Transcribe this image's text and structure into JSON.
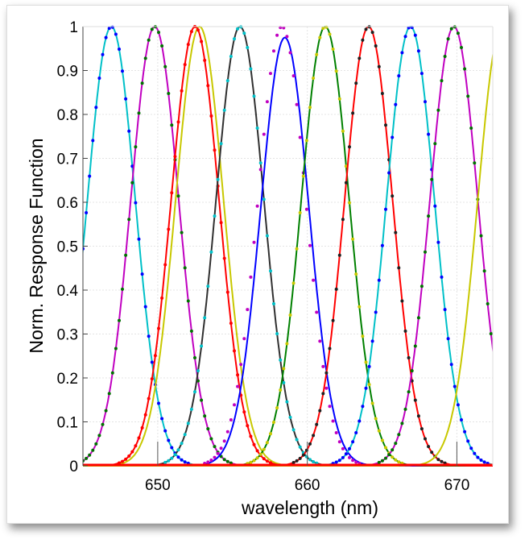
{
  "chart_data": {
    "type": "line",
    "title": "",
    "xlabel": "wavelength (nm)",
    "ylabel": "Norm. Response Function",
    "xlim": [
      645,
      672.4
    ],
    "ylim": [
      0,
      1
    ],
    "xticks": [
      "650",
      "660",
      "670"
    ],
    "xtick_values": [
      650,
      660,
      670
    ],
    "yticks": [
      "0",
      "0.1",
      "0.2",
      "0.3",
      "0.4",
      "0.5",
      "0.6",
      "0.7",
      "0.8",
      "0.9",
      "1"
    ],
    "grid": true,
    "legend": "none",
    "curve_shape": "gaussian",
    "gaussian_sigma_nm": 1.6,
    "series": [
      {
        "center": 646.9,
        "peak": 1.0,
        "line_color": "#00c0c8",
        "dot_color": "#0000ff"
      },
      {
        "center": 649.8,
        "peak": 1.0,
        "line_color": "#c000c0",
        "dot_color": "#007000"
      },
      {
        "center": 652.8,
        "peak": 1.0,
        "line_color": "#c8c800",
        "dot_color": ""
      },
      {
        "center": 652.5,
        "peak": 1.0,
        "line_color": "#ff0000",
        "dot_color": "#ff0000"
      },
      {
        "center": 655.5,
        "peak": 1.0,
        "line_color": "#303030",
        "dot_color": "#00c0c8"
      },
      {
        "center": 658.5,
        "peak": 0.975,
        "line_color": "#0000ff",
        "dot_color": ""
      },
      {
        "center": 658.3,
        "peak": 1.0,
        "line_color": "",
        "dot_color": "#c000c0"
      },
      {
        "center": 661.2,
        "peak": 1.0,
        "line_color": "#008000",
        "dot_color": "#c8c800"
      },
      {
        "center": 664.1,
        "peak": 1.0,
        "line_color": "#ff0000",
        "dot_color": "#202020"
      },
      {
        "center": 666.9,
        "peak": 1.0,
        "line_color": "#00c0c8",
        "dot_color": "#0000ff"
      },
      {
        "center": 669.8,
        "peak": 1.0,
        "line_color": "#c000c0",
        "dot_color": "#007000"
      },
      {
        "center": 673.0,
        "peak": 1.0,
        "line_color": "#c8c800",
        "dot_color": ""
      }
    ]
  }
}
